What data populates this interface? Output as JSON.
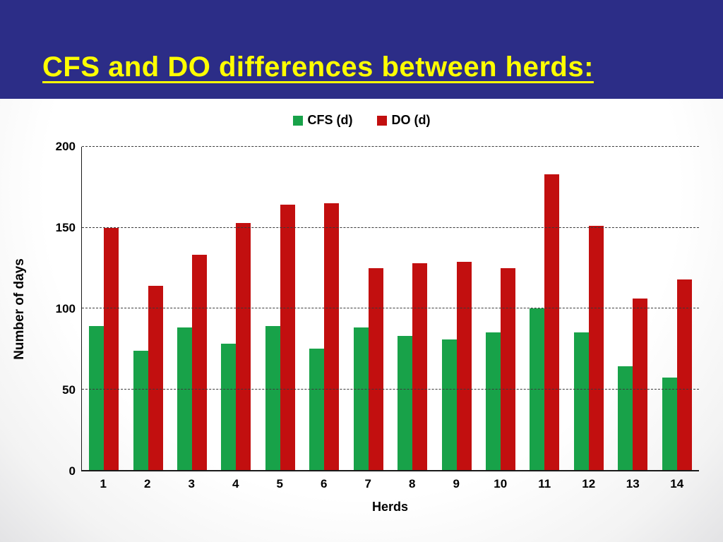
{
  "slide": {
    "title": "CFS and DO differences between herds:",
    "header_bg": "#2c2d87",
    "title_color": "#ffff00"
  },
  "chart_data": {
    "type": "bar",
    "title": "",
    "categories": [
      "1",
      "2",
      "3",
      "4",
      "5",
      "6",
      "7",
      "8",
      "9",
      "10",
      "11",
      "12",
      "13",
      "14"
    ],
    "series": [
      {
        "name": "CFS (d)",
        "color": "#18a249",
        "values": [
          89,
          74,
          88,
          78,
          89,
          75,
          88,
          83,
          81,
          85,
          100,
          85,
          64,
          57
        ]
      },
      {
        "name": "DO (d)",
        "color": "#c20f0f",
        "values": [
          150,
          114,
          133,
          153,
          164,
          165,
          125,
          128,
          129,
          125,
          183,
          151,
          106,
          118
        ]
      }
    ],
    "xlabel": "Herds",
    "ylabel": "Number of days",
    "ylim": [
      0,
      200
    ],
    "yticks": [
      0,
      50,
      100,
      150,
      200
    ],
    "grid": "dashed-horizontal",
    "legend_position": "top-center"
  }
}
